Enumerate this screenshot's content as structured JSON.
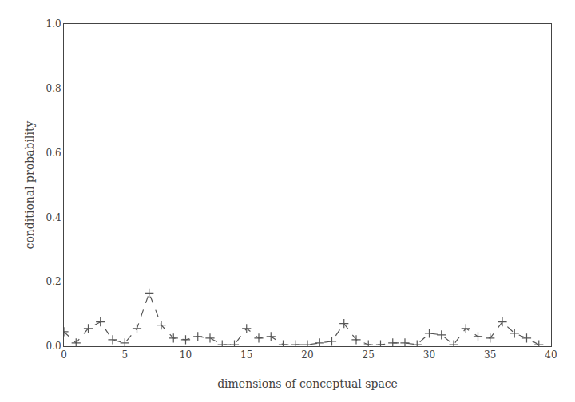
{
  "chart_data": {
    "type": "line",
    "x": [
      0,
      1,
      2,
      3,
      4,
      5,
      6,
      7,
      8,
      9,
      10,
      11,
      12,
      13,
      14,
      15,
      16,
      17,
      18,
      19,
      20,
      21,
      22,
      23,
      24,
      25,
      26,
      27,
      28,
      29,
      30,
      31,
      32,
      33,
      34,
      35,
      36,
      37,
      38,
      39
    ],
    "values": [
      0.045,
      0.01,
      0.055,
      0.075,
      0.02,
      0.01,
      0.055,
      0.165,
      0.065,
      0.025,
      0.02,
      0.03,
      0.025,
      0.005,
      0.005,
      0.055,
      0.025,
      0.03,
      0.005,
      0.005,
      0.005,
      0.01,
      0.015,
      0.07,
      0.02,
      0.005,
      0.005,
      0.01,
      0.01,
      0.005,
      0.04,
      0.035,
      0.005,
      0.055,
      0.03,
      0.025,
      0.075,
      0.04,
      0.025,
      0.005
    ],
    "xlabel": "dimensions of conceptual space",
    "ylabel": "conditional probability",
    "xlim": [
      0,
      40
    ],
    "ylim": [
      0.0,
      1.0
    ],
    "xticks": [
      0,
      5,
      10,
      15,
      20,
      25,
      30,
      35,
      40
    ],
    "yticks": [
      {
        "value": 0.0,
        "label": "0.0"
      },
      0.2,
      0.4,
      0.6,
      0.8,
      {
        "value": 1.0,
        "label": "1.0"
      }
    ],
    "color": "#555555",
    "marker": "plus",
    "line_style": "dashed",
    "grid": false
  }
}
